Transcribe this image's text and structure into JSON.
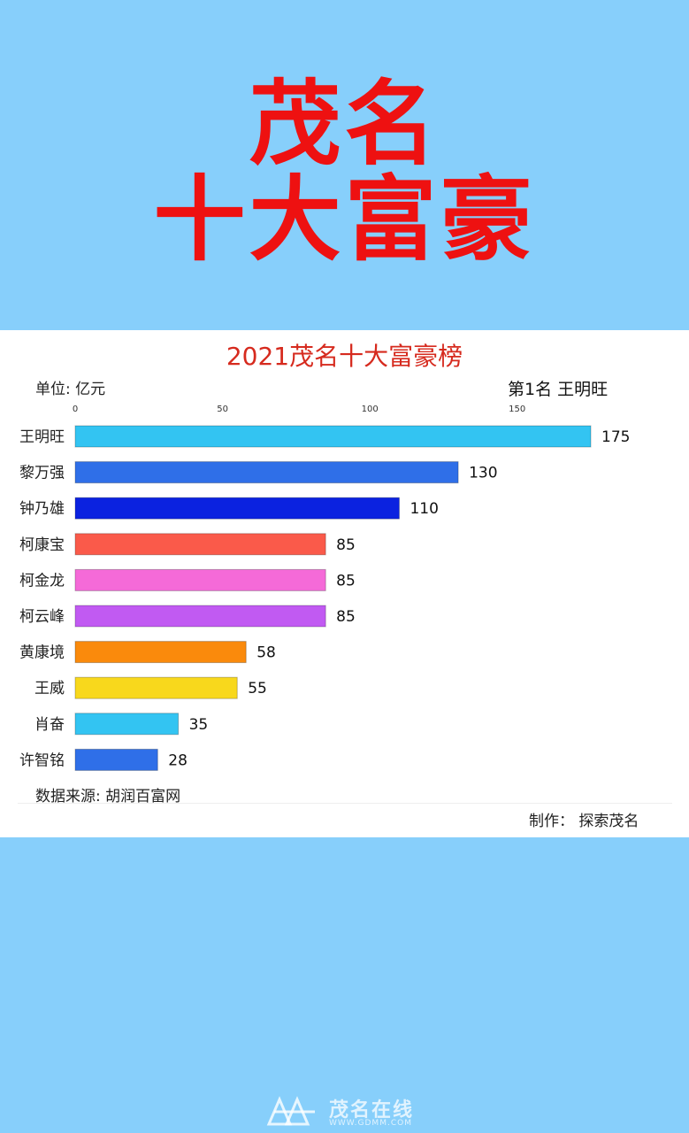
{
  "headline": {
    "line1": "茂名",
    "line2": "十大富豪"
  },
  "chart_data": {
    "type": "bar",
    "orientation": "horizontal",
    "title": "2021茂名十大富豪榜",
    "unit_label": "单位: 亿元",
    "leader_label": "第1名 王明旺",
    "xlim": [
      0,
      175
    ],
    "ticks": [
      0,
      50,
      100,
      150
    ],
    "categories": [
      "王明旺",
      "黎万强",
      "钟乃雄",
      "柯康宝",
      "柯金龙",
      "柯云峰",
      "黄康境",
      "王威",
      "肖奋",
      "许智铭"
    ],
    "values": [
      175,
      130,
      110,
      85,
      85,
      85,
      58,
      55,
      35,
      28
    ],
    "colors": [
      "#33c4f2",
      "#2f6fe8",
      "#0b22e0",
      "#fa5a4a",
      "#f56ad8",
      "#c15af2",
      "#fa8a0c",
      "#f8d81c",
      "#33c4f2",
      "#2f6fe8"
    ],
    "gridlines": false,
    "source": "数据来源: 胡润百富网",
    "credit": "制作： 探索茂名"
  },
  "watermark": {
    "text": "茂名在线",
    "url": "WWW.GDMM.COM"
  }
}
